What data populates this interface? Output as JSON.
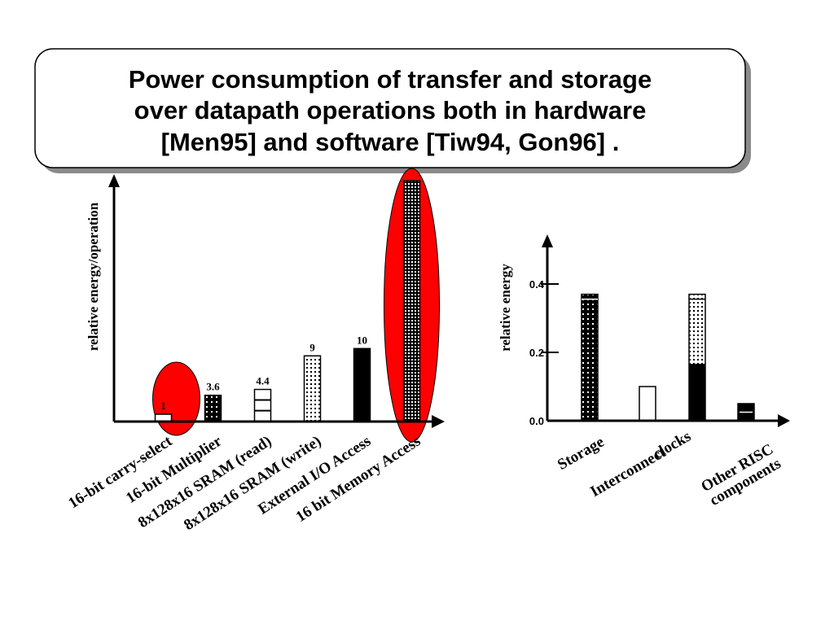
{
  "slide": {
    "title_lines": [
      "Power consumption of  transfer and storage",
      "over datapath operations both in hardware",
      "[Men95] and software [Tiw94, Gon96] ."
    ]
  },
  "chart_data": [
    {
      "type": "bar",
      "title": "",
      "ylabel": "relative energy/operation",
      "xlabel": "",
      "categories": [
        "16-bit carry-select",
        "16-bit Multiplier",
        "8x128x16 SRAM (read)",
        "8x128x16 SRAM (write)",
        "External I/O Access",
        "16 bit Memory Access"
      ],
      "values": [
        1,
        3.6,
        4.4,
        9,
        10,
        33
      ],
      "data_labels": [
        "1",
        "3.6",
        "4.4",
        "9",
        "10",
        ""
      ],
      "patterns": [
        "white",
        "dots-dark",
        "white-striped",
        "dots-light",
        "black",
        "dots-dense"
      ],
      "highlighted": [
        0,
        5
      ],
      "highlight_color": "#ff0000",
      "ylim": [
        0,
        33
      ],
      "grid": false
    },
    {
      "type": "bar",
      "title": "",
      "ylabel": "relative energy",
      "xlabel": "",
      "categories": [
        "Storage",
        "Interconnect",
        "clocks",
        "Other RISC components"
      ],
      "category_label_lines": [
        [
          "Storage"
        ],
        [
          "Interconnect"
        ],
        [
          "clocks"
        ],
        [
          "Other RISC",
          "components"
        ]
      ],
      "values": [
        0.37,
        0.1,
        0.37,
        0.05
      ],
      "patterns": [
        "dots-dark",
        "white",
        "dots-light-black",
        "black-striped"
      ],
      "yticks": [
        0.0,
        0.2,
        0.4
      ],
      "ytick_labels": [
        "0.0",
        "0.2",
        "0.4"
      ],
      "ylim": [
        0,
        0.5
      ],
      "grid": false
    }
  ]
}
